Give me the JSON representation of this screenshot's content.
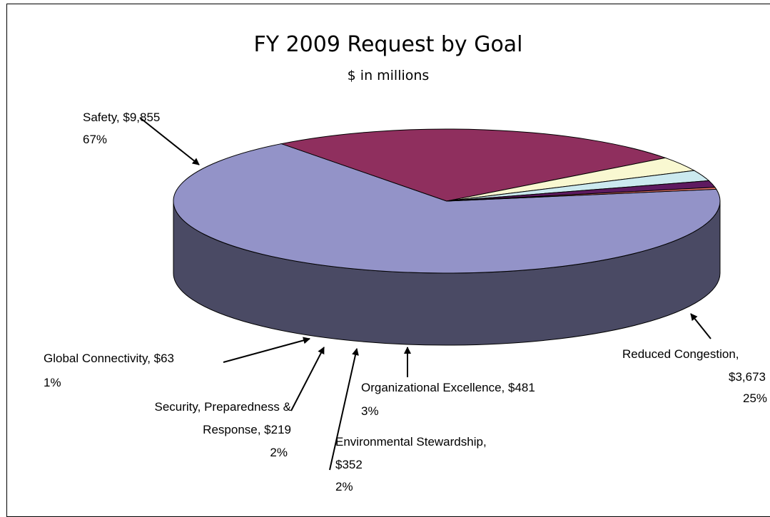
{
  "chart_data": {
    "type": "pie",
    "title": "FY 2009 Request by Goal",
    "subtitle": "$ in millions",
    "slices": [
      {
        "name": "Safety",
        "value_text": "$9,855",
        "value": 9855,
        "percent": "67%",
        "color": "#9393c8"
      },
      {
        "name": "Reduced Congestion",
        "value_text": "$3,673",
        "value": 3673,
        "percent": "25%",
        "color": "#8f2f5e"
      },
      {
        "name": "Organizational Excellence",
        "value_text": "$481",
        "value": 481,
        "percent": "3%",
        "color": "#f9f8d1"
      },
      {
        "name": "Environmental Stewardship",
        "value_text": "$352",
        "value": 352,
        "percent": "2%",
        "color": "#cbe9ef"
      },
      {
        "name": "Security, Preparedness & Response",
        "value_text": "$219",
        "value": 219,
        "percent": "2%",
        "color": "#5e1a60"
      },
      {
        "name": "Global Connectivity",
        "value_text": "$63",
        "value": 63,
        "percent": "1%",
        "color": "#e97469"
      }
    ]
  },
  "labels": {
    "safety_line1": "Safety, $9,855",
    "safety_line2": "67%",
    "congestion_line1": "Reduced Congestion,",
    "congestion_line2": "$3,673",
    "congestion_line3": "25%",
    "org_line1": "Organizational Excellence, $481",
    "org_line2": "3%",
    "env_line1": "Environmental Stewardship,",
    "env_line2": "$352",
    "env_line3": "2%",
    "security_line1": "Security, Preparedness &",
    "security_line2": "Response, $219",
    "security_line3": "2%",
    "global_line1": "Global Connectivity, $63",
    "global_line2": "1%"
  }
}
